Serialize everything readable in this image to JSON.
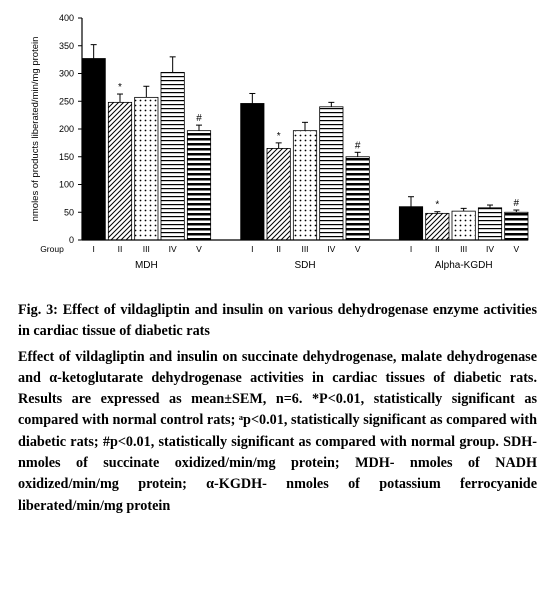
{
  "chart": {
    "type": "bar",
    "ylabel": "nmoles of products liberated/min/mg protein",
    "xlabel_segments": [
      "MDH",
      "SDH",
      "Alpha-KGDH"
    ],
    "group_label": "Group",
    "group_ids": [
      "I",
      "II",
      "III",
      "IV",
      "V"
    ],
    "ylim": [
      0,
      400
    ],
    "yticks": [
      0,
      50,
      100,
      150,
      200,
      250,
      300,
      350,
      400
    ],
    "title_fontsize": 10,
    "tick_fontsize": 8,
    "background_color": "#ffffff",
    "axis_color": "#000000",
    "bar_colors": {
      "I": {
        "fill": "#000000",
        "pattern": "solid"
      },
      "II": {
        "fill": "#ffffff",
        "pattern": "diag-hatch",
        "stroke": "#000000"
      },
      "III": {
        "fill": "#ffffff",
        "pattern": "dots",
        "stroke": "#000000"
      },
      "IV": {
        "fill": "#ffffff",
        "pattern": "h-stripes",
        "stroke": "#000000"
      },
      "V": {
        "fill": "#ffffff",
        "pattern": "h-stripes-thick",
        "stroke": "#000000"
      }
    },
    "data": {
      "MDH": {
        "I": 327,
        "II": 248,
        "III": 257,
        "IV": 302,
        "V": 197
      },
      "SDH": {
        "I": 246,
        "II": 165,
        "III": 197,
        "IV": 240,
        "V": 150
      },
      "Alpha-KGDH": {
        "I": 60,
        "II": 48,
        "III": 52,
        "IV": 58,
        "V": 50
      }
    },
    "errors": {
      "MDH": {
        "I": 25,
        "II": 15,
        "III": 20,
        "IV": 28,
        "V": 10
      },
      "SDH": {
        "I": 18,
        "II": 10,
        "III": 15,
        "IV": 8,
        "V": 8
      },
      "Alpha-KGDH": {
        "I": 18,
        "II": 3,
        "III": 5,
        "IV": 5,
        "V": 4
      }
    },
    "annotations": {
      "MDH": {
        "II": "*",
        "V": "#"
      },
      "SDH": {
        "II": "*",
        "V": "#"
      },
      "Alpha-KGDH": {
        "II": "*",
        "V": "#"
      }
    }
  },
  "caption": {
    "title": "Fig. 3: Effect of vildagliptin and insulin on various dehydrogenase enzyme activities in cardiac tissue of diabetic rats",
    "body": "Effect of vildagliptin and insulin on succinate dehydrogenase, malate dehydrogenase and α-ketoglutarate dehydrogenase activities in cardiac tissues of diabetic rats. Results are expressed as mean±SEM, n=6. *P<0.01, statistically significant as compared with normal control rats; ᵃp<0.01, statistically significant as compared with diabetic rats; #p<0.01, statistically significant as compared with normal group. SDH- nmoles of succinate oxidized/min/mg protein; MDH- nmoles of NADH oxidized/min/mg protein; α-KGDH- nmoles of potassium ferrocyanide liberated/min/mg protein"
  }
}
